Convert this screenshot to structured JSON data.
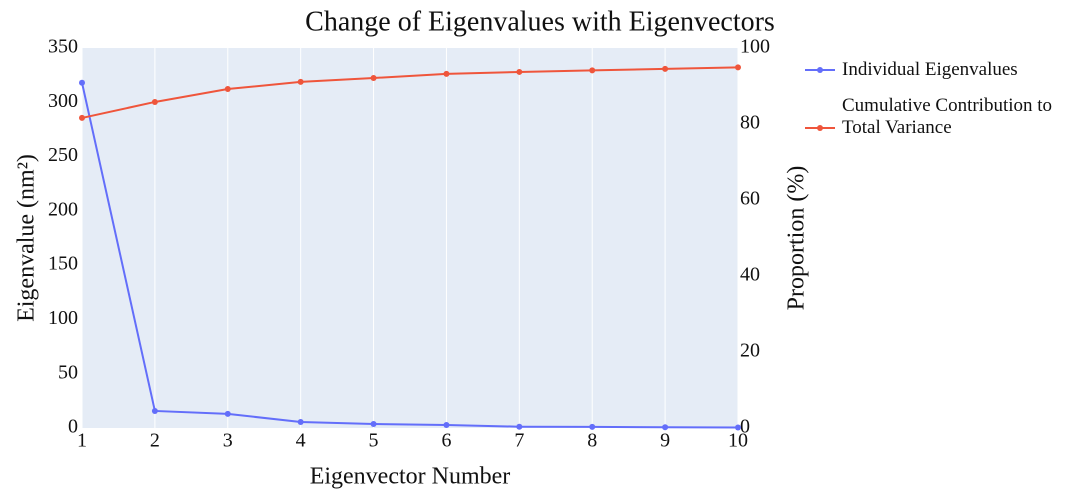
{
  "chart_data": {
    "type": "line",
    "title": "Change of Eigenvalues with Eigenvectors",
    "xlabel": "Eigenvector Number",
    "ylabel": "Eigenvalue (nm²)",
    "y2label": "Proportion (%)",
    "x": [
      1,
      2,
      3,
      4,
      5,
      6,
      7,
      8,
      9,
      10
    ],
    "xlim": [
      1,
      10
    ],
    "xticks": [
      1,
      2,
      3,
      4,
      5,
      6,
      7,
      8,
      9,
      10
    ],
    "ylim": [
      0,
      350
    ],
    "yticks": [
      0,
      50,
      100,
      150,
      200,
      250,
      300,
      350
    ],
    "y2lim": [
      0,
      100
    ],
    "y2ticks": [
      0,
      20,
      40,
      60,
      80,
      100
    ],
    "grid": true,
    "series": [
      {
        "name": "Individual Eigenvalues",
        "color": "#636efa",
        "values": [
          318,
          15.7,
          13,
          5.5,
          3.7,
          2.8,
          1.2,
          1,
          0.7,
          0.5
        ]
      },
      {
        "name": "Cumulative Contribution to Total Variance",
        "color": "#ef553b",
        "axis": "y2",
        "values": [
          81.6,
          85.8,
          89.2,
          91.1,
          92.1,
          93.2,
          93.7,
          94.1,
          94.5,
          94.9
        ]
      }
    ]
  }
}
